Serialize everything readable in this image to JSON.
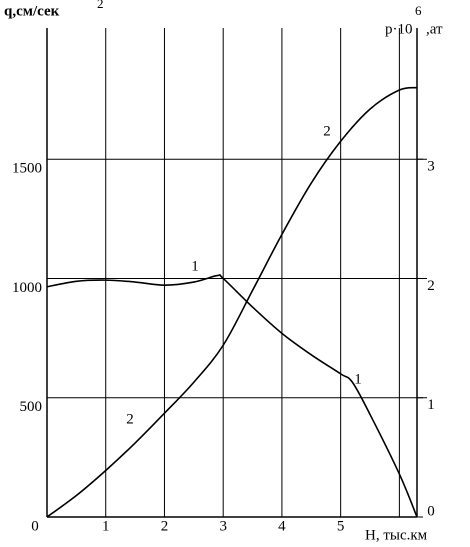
{
  "chart_data": {
    "type": "line",
    "ylabel": "q,см/сек",
    "ylabel_sup": "2",
    "y2label": "p·10",
    "y2label_sup": "6",
    "y2label_unit": ",ат",
    "xlabel": "H, тыс.км",
    "xlim": [
      0,
      6.3
    ],
    "ylim": [
      0,
      2050
    ],
    "y2lim": [
      0,
      4.1
    ],
    "xticks": [
      0,
      1,
      2,
      3,
      4,
      5
    ],
    "xgrid": [
      1,
      2,
      3,
      4,
      5,
      6
    ],
    "yticks": [
      500,
      1000,
      1500
    ],
    "y2ticks": [
      0,
      1,
      2,
      3
    ],
    "grid": true,
    "series": [
      {
        "name": "1",
        "color": "#000000",
        "x": [
          0,
          0.5,
          1,
          1.5,
          2,
          2.5,
          2.9,
          3,
          3.5,
          4,
          4.5,
          5,
          5.2,
          5.5,
          6,
          6.3
        ],
        "values": [
          965,
          988,
          993,
          985,
          972,
          985,
          1012,
          1000,
          880,
          770,
          680,
          600,
          565,
          430,
          180,
          0
        ]
      },
      {
        "name": "2",
        "color": "#000000",
        "axis": "y2",
        "x": [
          0,
          0.5,
          1,
          1.5,
          2,
          2.5,
          3,
          3.5,
          4,
          4.5,
          5,
          5.5,
          6,
          6.3
        ],
        "values": [
          0,
          0.18,
          0.39,
          0.62,
          0.87,
          1.13,
          1.44,
          1.9,
          2.37,
          2.8,
          3.15,
          3.42,
          3.58,
          3.6
        ]
      }
    ]
  }
}
